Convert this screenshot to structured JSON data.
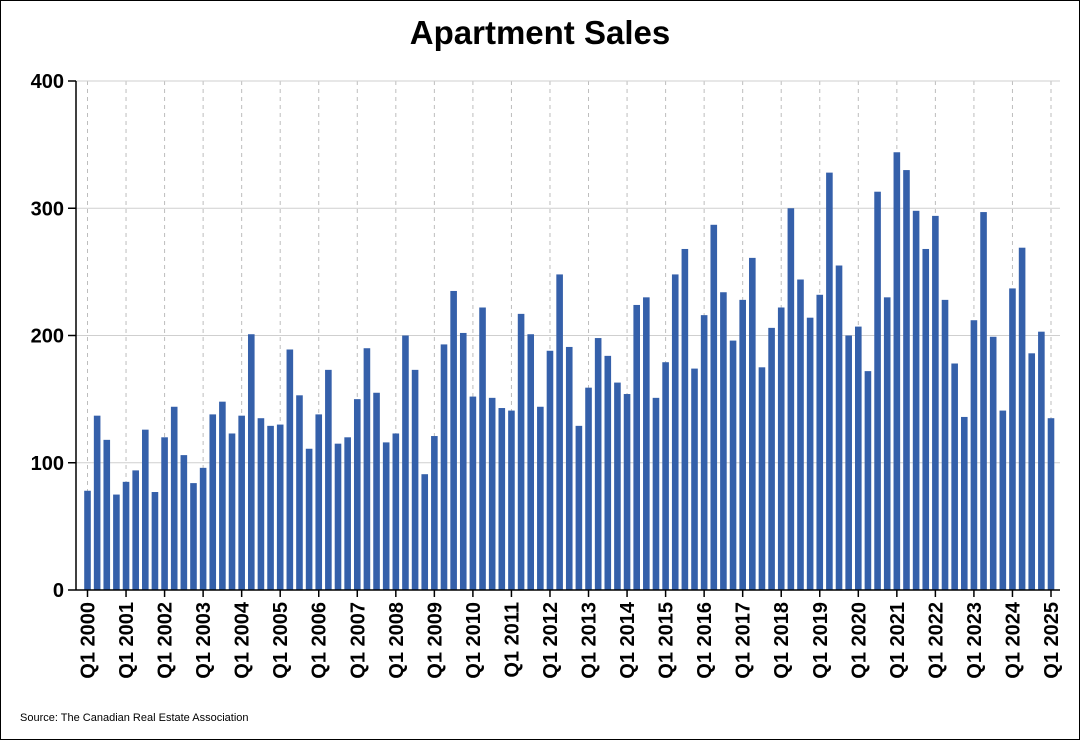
{
  "chart_data": {
    "type": "bar",
    "title": "Apartment Sales",
    "source": "Source: The Canadian Real Estate Association",
    "xlabel": "",
    "ylabel": "",
    "ylim": [
      0,
      400
    ],
    "yticks": [
      0,
      100,
      200,
      300,
      400
    ],
    "grid": true,
    "bar_color": "#3560aa",
    "xtick_labels": [
      "Q1 2000",
      "Q1 2001",
      "Q1 2002",
      "Q1 2003",
      "Q1 2004",
      "Q1 2005",
      "Q1 2006",
      "Q1 2007",
      "Q1 2008",
      "Q1 2009",
      "Q1 2010",
      "Q1 2011",
      "Q1 2012",
      "Q1 2013",
      "Q1 2014",
      "Q1 2015",
      "Q1 2016",
      "Q1 2017",
      "Q1 2018",
      "Q1 2019",
      "Q1 2020",
      "Q1 2021",
      "Q1 2022",
      "Q1 2023",
      "Q1 2024",
      "Q1 2025"
    ],
    "categories": [
      "Q1 2000",
      "Q2 2000",
      "Q3 2000",
      "Q4 2000",
      "Q1 2001",
      "Q2 2001",
      "Q3 2001",
      "Q4 2001",
      "Q1 2002",
      "Q2 2002",
      "Q3 2002",
      "Q4 2002",
      "Q1 2003",
      "Q2 2003",
      "Q3 2003",
      "Q4 2003",
      "Q1 2004",
      "Q2 2004",
      "Q3 2004",
      "Q4 2004",
      "Q1 2005",
      "Q2 2005",
      "Q3 2005",
      "Q4 2005",
      "Q1 2006",
      "Q2 2006",
      "Q3 2006",
      "Q4 2006",
      "Q1 2007",
      "Q2 2007",
      "Q3 2007",
      "Q4 2007",
      "Q1 2008",
      "Q2 2008",
      "Q3 2008",
      "Q4 2008",
      "Q1 2009",
      "Q2 2009",
      "Q3 2009",
      "Q4 2009",
      "Q1 2010",
      "Q2 2010",
      "Q3 2010",
      "Q4 2010",
      "Q1 2011",
      "Q2 2011",
      "Q3 2011",
      "Q4 2011",
      "Q1 2012",
      "Q2 2012",
      "Q3 2012",
      "Q4 2012",
      "Q1 2013",
      "Q2 2013",
      "Q3 2013",
      "Q4 2013",
      "Q1 2014",
      "Q2 2014",
      "Q3 2014",
      "Q4 2014",
      "Q1 2015",
      "Q2 2015",
      "Q3 2015",
      "Q4 2015",
      "Q1 2016",
      "Q2 2016",
      "Q3 2016",
      "Q4 2016",
      "Q1 2017",
      "Q2 2017",
      "Q3 2017",
      "Q4 2017",
      "Q1 2018",
      "Q2 2018",
      "Q3 2018",
      "Q4 2018",
      "Q1 2019",
      "Q2 2019",
      "Q3 2019",
      "Q4 2019",
      "Q1 2020",
      "Q2 2020",
      "Q3 2020",
      "Q4 2020",
      "Q1 2021",
      "Q2 2021",
      "Q3 2021",
      "Q4 2021",
      "Q1 2022",
      "Q2 2022",
      "Q3 2022",
      "Q4 2022",
      "Q1 2023",
      "Q2 2023",
      "Q3 2023",
      "Q4 2023",
      "Q1 2024",
      "Q2 2024",
      "Q3 2024",
      "Q4 2024",
      "Q1 2025"
    ],
    "values": [
      78,
      137,
      118,
      75,
      85,
      94,
      126,
      77,
      120,
      144,
      106,
      84,
      96,
      138,
      148,
      123,
      137,
      201,
      135,
      129,
      130,
      189,
      153,
      111,
      138,
      173,
      115,
      120,
      150,
      190,
      155,
      116,
      123,
      200,
      173,
      91,
      121,
      193,
      235,
      202,
      152,
      222,
      151,
      143,
      141,
      217,
      201,
      144,
      188,
      248,
      191,
      129,
      159,
      198,
      184,
      163,
      154,
      224,
      230,
      151,
      179,
      248,
      268,
      174,
      216,
      287,
      234,
      196,
      228,
      261,
      175,
      206,
      222,
      300,
      244,
      214,
      232,
      328,
      255,
      200,
      207,
      172,
      313,
      230,
      344,
      330,
      298,
      268,
      294,
      228,
      178,
      136,
      212,
      297,
      199,
      141,
      237,
      269,
      186,
      203,
      135
    ]
  }
}
